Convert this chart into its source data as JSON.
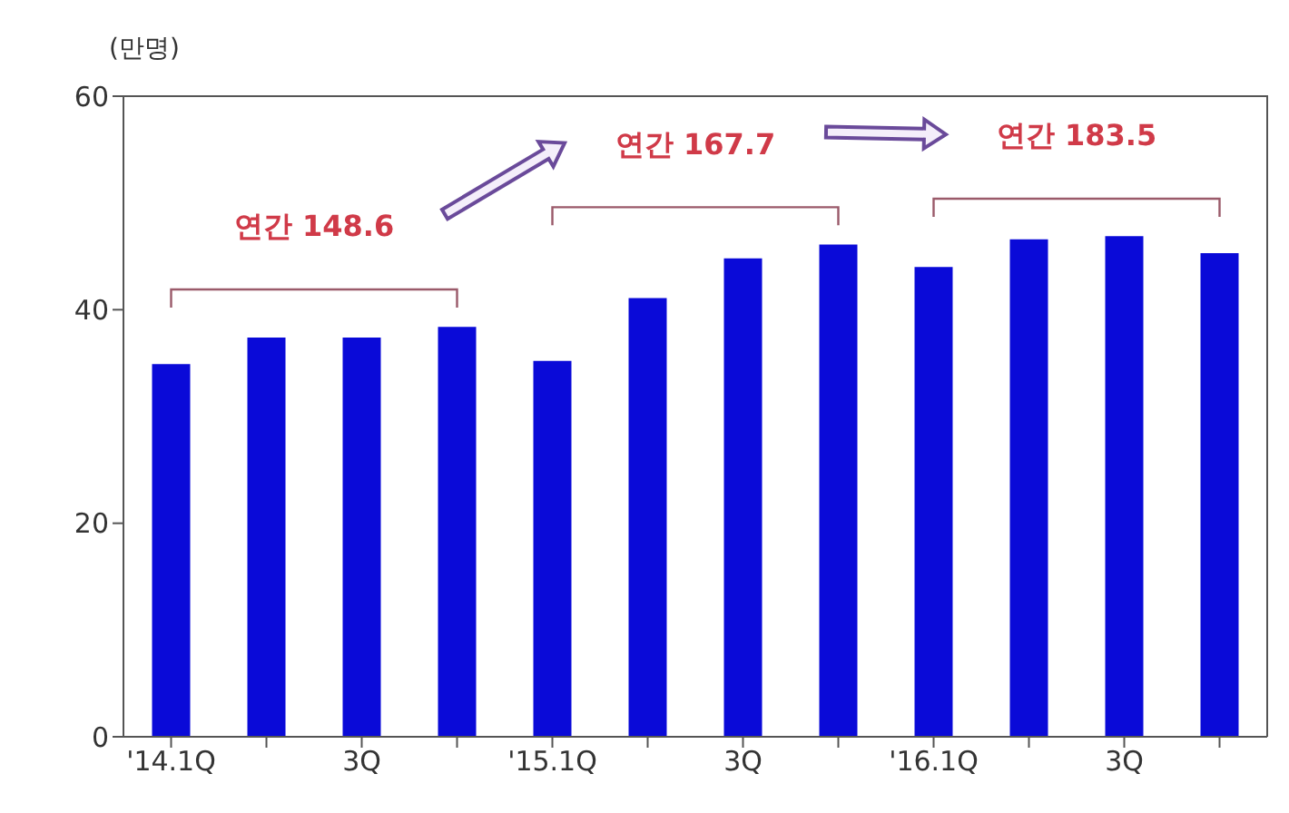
{
  "chart_data": {
    "type": "bar",
    "ylabel": "(만명)",
    "categories": [
      "'14.1Q",
      null,
      "3Q",
      null,
      "'15.1Q",
      null,
      "3Q",
      null,
      "'16.1Q",
      null,
      "3Q",
      null
    ],
    "values": [
      34.9,
      37.4,
      37.4,
      38.4,
      35.2,
      41.1,
      44.8,
      46.1,
      44.0,
      46.6,
      46.9,
      45.3
    ],
    "color": "#0a0ad8",
    "ylim": [
      0,
      60
    ],
    "yticks": [
      0,
      20,
      40,
      60
    ],
    "annotations": [
      "연간 148.6",
      "연간 167.7",
      "연간 183.5"
    ]
  }
}
